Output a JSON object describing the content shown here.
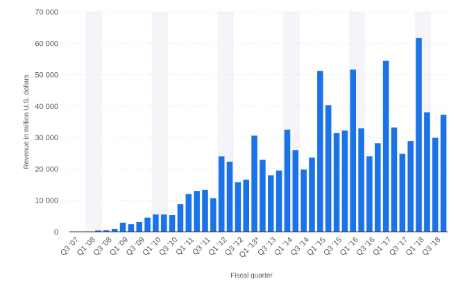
{
  "chart_data": {
    "type": "bar",
    "xlabel": "Fiscal quarter",
    "ylabel": "Revenue in million U.S. dollars",
    "ylim": [
      0,
      70000
    ],
    "yticks": [
      0,
      10000,
      20000,
      30000,
      40000,
      50000,
      60000,
      70000
    ],
    "ytick_labels": [
      "0",
      "10 000",
      "20 000",
      "30 000",
      "40 000",
      "50 000",
      "60 000",
      "70 000"
    ],
    "grid": true,
    "bar_color": "#1a73e8",
    "band_color": "#f6f4f8",
    "categories": [
      "Q3 '07",
      "Q4 '07",
      "Q1 '08",
      "Q2 '08",
      "Q3 '08",
      "Q4 '08",
      "Q1 '09",
      "Q2 '09",
      "Q3 '09",
      "Q4 '09",
      "Q1 '10",
      "Q2 '10",
      "Q3 '10",
      "Q4 '10",
      "Q1 '11",
      "Q2 '11",
      "Q3 '11",
      "Q4 '11",
      "Q1 '12",
      "Q2 '12",
      "Q3 '12",
      "Q4 '12",
      "Q1 '13*",
      "Q2 '13",
      "Q3 '13",
      "Q4 '13",
      "Q1 '14",
      "Q2 '14",
      "Q3 '14",
      "Q4 '14",
      "Q1 '15",
      "Q2 '15",
      "Q3 '15",
      "Q4 '15",
      "Q1 '16",
      "Q2 '16",
      "Q3 '16",
      "Q4 '16",
      "Q1 '17",
      "Q2 '17",
      "Q3 '17",
      "Q4 '17",
      "Q1 '18",
      "Q2 '18",
      "Q3 '18",
      "Q4 '18"
    ],
    "values": [
      0,
      0,
      0,
      400,
      500,
      900,
      2900,
      2400,
      3100,
      4500,
      5500,
      5500,
      5300,
      8800,
      12000,
      13000,
      13300,
      10700,
      24000,
      22300,
      15800,
      16600,
      30600,
      22900,
      18000,
      19500,
      32500,
      26000,
      19800,
      23600,
      51200,
      40300,
      31400,
      32200,
      51600,
      32900,
      24000,
      28200,
      54400,
      33200,
      24800,
      28900,
      61600,
      38000,
      29900,
      37200
    ],
    "shown_tick_labels": [
      "Q3 '07",
      "Q1 '08",
      "Q3 '08",
      "Q1 '09",
      "Q3 '09",
      "Q1 '10",
      "Q3 '10",
      "Q1 '11",
      "Q3 '11",
      "Q1 '12",
      "Q3 '12",
      "Q1 '13*",
      "Q3 '13",
      "Q1 '14",
      "Q3 '14",
      "Q1 '15",
      "Q3 '15",
      "Q1 '16",
      "Q3 '16",
      "Q1 '17",
      "Q3 '17",
      "Q1 '18",
      "Q3 '18"
    ]
  }
}
